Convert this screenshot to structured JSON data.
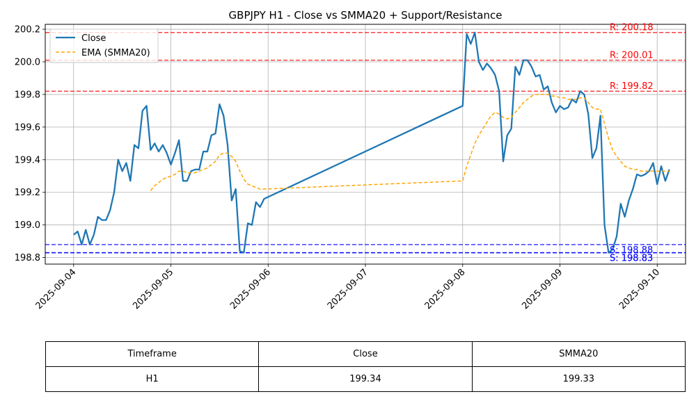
{
  "chart_data": {
    "type": "line",
    "title": "GBPJPY H1 - Close vs SMMA20 + Support/Resistance",
    "xlabel": "",
    "ylabel": "",
    "x_ticks": [
      "2025-09-04",
      "2025-09-05",
      "2025-09-06",
      "2025-09-07",
      "2025-09-08",
      "2025-09-09",
      "2025-09-10"
    ],
    "y_ticks": [
      "198.8",
      "199.0",
      "199.2",
      "199.4",
      "199.6",
      "199.8",
      "200.0",
      "200.2"
    ],
    "xlim": [
      "2025-09-03 17:00",
      "2025-09-10 07:00"
    ],
    "ylim": [
      198.76,
      200.23
    ],
    "grid": true,
    "legend_position": "top-left",
    "series": [
      {
        "name": "Close",
        "color": "#1f77b4",
        "style": "solid",
        "points": [
          [
            "2025-09-04 00:00",
            198.94
          ],
          [
            "2025-09-04 01:00",
            198.96
          ],
          [
            "2025-09-04 02:00",
            198.88
          ],
          [
            "2025-09-04 03:00",
            198.97
          ],
          [
            "2025-09-04 04:00",
            198.88
          ],
          [
            "2025-09-04 05:00",
            198.94
          ],
          [
            "2025-09-04 06:00",
            199.05
          ],
          [
            "2025-09-04 07:00",
            199.03
          ],
          [
            "2025-09-04 08:00",
            199.03
          ],
          [
            "2025-09-04 09:00",
            199.09
          ],
          [
            "2025-09-04 10:00",
            199.2
          ],
          [
            "2025-09-04 11:00",
            199.4
          ],
          [
            "2025-09-04 12:00",
            199.33
          ],
          [
            "2025-09-04 13:00",
            199.38
          ],
          [
            "2025-09-04 14:00",
            199.27
          ],
          [
            "2025-09-04 15:00",
            199.49
          ],
          [
            "2025-09-04 16:00",
            199.47
          ],
          [
            "2025-09-04 17:00",
            199.7
          ],
          [
            "2025-09-04 18:00",
            199.73
          ],
          [
            "2025-09-04 19:00",
            199.46
          ],
          [
            "2025-09-04 20:00",
            199.5
          ],
          [
            "2025-09-04 21:00",
            199.45
          ],
          [
            "2025-09-04 22:00",
            199.49
          ],
          [
            "2025-09-04 23:00",
            199.44
          ],
          [
            "2025-09-05 00:00",
            199.37
          ],
          [
            "2025-09-05 01:00",
            199.44
          ],
          [
            "2025-09-05 02:00",
            199.52
          ],
          [
            "2025-09-05 03:00",
            199.27
          ],
          [
            "2025-09-05 04:00",
            199.27
          ],
          [
            "2025-09-05 05:00",
            199.33
          ],
          [
            "2025-09-05 06:00",
            199.34
          ],
          [
            "2025-09-05 07:00",
            199.34
          ],
          [
            "2025-09-05 08:00",
            199.45
          ],
          [
            "2025-09-05 09:00",
            199.45
          ],
          [
            "2025-09-05 10:00",
            199.55
          ],
          [
            "2025-09-05 11:00",
            199.56
          ],
          [
            "2025-09-05 12:00",
            199.74
          ],
          [
            "2025-09-05 13:00",
            199.67
          ],
          [
            "2025-09-05 14:00",
            199.49
          ],
          [
            "2025-09-05 15:00",
            199.15
          ],
          [
            "2025-09-05 16:00",
            199.22
          ],
          [
            "2025-09-05 17:00",
            198.84
          ],
          [
            "2025-09-05 18:00",
            198.83
          ],
          [
            "2025-09-05 19:00",
            199.01
          ],
          [
            "2025-09-05 20:00",
            199.0
          ],
          [
            "2025-09-05 21:00",
            199.14
          ],
          [
            "2025-09-05 22:00",
            199.11
          ],
          [
            "2025-09-05 23:00",
            199.16
          ],
          [
            "2025-09-08 00:00",
            199.73
          ],
          [
            "2025-09-08 01:00",
            200.17
          ],
          [
            "2025-09-08 02:00",
            200.11
          ],
          [
            "2025-09-08 03:00",
            200.18
          ],
          [
            "2025-09-08 04:00",
            200.0
          ],
          [
            "2025-09-08 05:00",
            199.95
          ],
          [
            "2025-09-08 06:00",
            199.99
          ],
          [
            "2025-09-08 07:00",
            199.96
          ],
          [
            "2025-09-08 08:00",
            199.92
          ],
          [
            "2025-09-08 09:00",
            199.82
          ],
          [
            "2025-09-08 10:00",
            199.39
          ],
          [
            "2025-09-08 11:00",
            199.55
          ],
          [
            "2025-09-08 12:00",
            199.59
          ],
          [
            "2025-09-08 13:00",
            199.97
          ],
          [
            "2025-09-08 14:00",
            199.92
          ],
          [
            "2025-09-08 15:00",
            200.01
          ],
          [
            "2025-09-08 16:00",
            200.01
          ],
          [
            "2025-09-08 17:00",
            199.97
          ],
          [
            "2025-09-08 18:00",
            199.91
          ],
          [
            "2025-09-08 19:00",
            199.92
          ],
          [
            "2025-09-08 20:00",
            199.83
          ],
          [
            "2025-09-08 21:00",
            199.85
          ],
          [
            "2025-09-08 22:00",
            199.75
          ],
          [
            "2025-09-08 23:00",
            199.69
          ],
          [
            "2025-09-09 00:00",
            199.73
          ],
          [
            "2025-09-09 01:00",
            199.71
          ],
          [
            "2025-09-09 02:00",
            199.72
          ],
          [
            "2025-09-09 03:00",
            199.77
          ],
          [
            "2025-09-09 04:00",
            199.75
          ],
          [
            "2025-09-09 05:00",
            199.82
          ],
          [
            "2025-09-09 06:00",
            199.8
          ],
          [
            "2025-09-09 07:00",
            199.68
          ],
          [
            "2025-09-09 08:00",
            199.41
          ],
          [
            "2025-09-09 09:00",
            199.47
          ],
          [
            "2025-09-09 10:00",
            199.67
          ],
          [
            "2025-09-09 11:00",
            199.0
          ],
          [
            "2025-09-09 12:00",
            198.83
          ],
          [
            "2025-09-09 13:00",
            198.85
          ],
          [
            "2025-09-09 14:00",
            198.93
          ],
          [
            "2025-09-09 15:00",
            199.13
          ],
          [
            "2025-09-09 16:00",
            199.05
          ],
          [
            "2025-09-09 17:00",
            199.15
          ],
          [
            "2025-09-09 18:00",
            199.22
          ],
          [
            "2025-09-09 19:00",
            199.31
          ],
          [
            "2025-09-09 20:00",
            199.3
          ],
          [
            "2025-09-09 21:00",
            199.31
          ],
          [
            "2025-09-09 22:00",
            199.33
          ],
          [
            "2025-09-09 23:00",
            199.38
          ],
          [
            "2025-09-10 00:00",
            199.25
          ],
          [
            "2025-09-10 01:00",
            199.36
          ],
          [
            "2025-09-10 02:00",
            199.27
          ],
          [
            "2025-09-10 03:00",
            199.34
          ]
        ]
      },
      {
        "name": "EMA (SMMA20)",
        "color": "#ffa500",
        "style": "dashed",
        "points": [
          [
            "2025-09-04 19:00",
            199.21
          ],
          [
            "2025-09-04 20:00",
            199.24
          ],
          [
            "2025-09-04 21:00",
            199.26
          ],
          [
            "2025-09-04 22:00",
            199.28
          ],
          [
            "2025-09-04 23:00",
            199.29
          ],
          [
            "2025-09-05 00:00",
            199.3
          ],
          [
            "2025-09-05 01:00",
            199.31
          ],
          [
            "2025-09-05 02:00",
            199.33
          ],
          [
            "2025-09-05 03:00",
            199.33
          ],
          [
            "2025-09-05 04:00",
            199.32
          ],
          [
            "2025-09-05 05:00",
            199.32
          ],
          [
            "2025-09-05 06:00",
            199.32
          ],
          [
            "2025-09-05 07:00",
            199.33
          ],
          [
            "2025-09-05 08:00",
            199.34
          ],
          [
            "2025-09-05 09:00",
            199.35
          ],
          [
            "2025-09-05 10:00",
            199.37
          ],
          [
            "2025-09-05 11:00",
            199.39
          ],
          [
            "2025-09-05 12:00",
            199.43
          ],
          [
            "2025-09-05 13:00",
            199.44
          ],
          [
            "2025-09-05 14:00",
            199.44
          ],
          [
            "2025-09-05 15:00",
            199.42
          ],
          [
            "2025-09-05 16:00",
            199.39
          ],
          [
            "2025-09-05 17:00",
            199.33
          ],
          [
            "2025-09-05 18:00",
            199.28
          ],
          [
            "2025-09-05 19:00",
            199.25
          ],
          [
            "2025-09-05 20:00",
            199.24
          ],
          [
            "2025-09-05 21:00",
            199.23
          ],
          [
            "2025-09-05 22:00",
            199.22
          ],
          [
            "2025-09-05 23:00",
            199.22
          ],
          [
            "2025-09-08 00:00",
            199.27
          ],
          [
            "2025-09-08 01:00",
            199.36
          ],
          [
            "2025-09-08 02:00",
            199.43
          ],
          [
            "2025-09-08 03:00",
            199.5
          ],
          [
            "2025-09-08 04:00",
            199.55
          ],
          [
            "2025-09-08 05:00",
            199.59
          ],
          [
            "2025-09-08 06:00",
            199.63
          ],
          [
            "2025-09-08 07:00",
            199.67
          ],
          [
            "2025-09-08 08:00",
            199.69
          ],
          [
            "2025-09-08 09:00",
            199.68
          ],
          [
            "2025-09-08 10:00",
            199.66
          ],
          [
            "2025-09-08 11:00",
            199.65
          ],
          [
            "2025-09-08 12:00",
            199.66
          ],
          [
            "2025-09-08 13:00",
            199.69
          ],
          [
            "2025-09-08 14:00",
            199.72
          ],
          [
            "2025-09-08 15:00",
            199.75
          ],
          [
            "2025-09-08 16:00",
            199.77
          ],
          [
            "2025-09-08 17:00",
            199.79
          ],
          [
            "2025-09-08 18:00",
            199.8
          ],
          [
            "2025-09-08 19:00",
            199.8
          ],
          [
            "2025-09-08 20:00",
            199.8
          ],
          [
            "2025-09-08 21:00",
            199.8
          ],
          [
            "2025-09-08 22:00",
            199.79
          ],
          [
            "2025-09-08 23:00",
            199.79
          ],
          [
            "2025-09-09 00:00",
            199.78
          ],
          [
            "2025-09-09 01:00",
            199.78
          ],
          [
            "2025-09-09 02:00",
            199.77
          ],
          [
            "2025-09-09 03:00",
            199.77
          ],
          [
            "2025-09-09 04:00",
            199.77
          ],
          [
            "2025-09-09 05:00",
            199.78
          ],
          [
            "2025-09-09 06:00",
            199.78
          ],
          [
            "2025-09-09 07:00",
            199.75
          ],
          [
            "2025-09-09 08:00",
            199.72
          ],
          [
            "2025-09-09 09:00",
            199.71
          ],
          [
            "2025-09-09 10:00",
            199.71
          ],
          [
            "2025-09-09 11:00",
            199.62
          ],
          [
            "2025-09-09 12:00",
            199.53
          ],
          [
            "2025-09-09 13:00",
            199.46
          ],
          [
            "2025-09-09 14:00",
            199.42
          ],
          [
            "2025-09-09 15:00",
            199.39
          ],
          [
            "2025-09-09 16:00",
            199.36
          ],
          [
            "2025-09-09 17:00",
            199.35
          ],
          [
            "2025-09-09 18:00",
            199.34
          ],
          [
            "2025-09-09 19:00",
            199.34
          ],
          [
            "2025-09-09 20:00",
            199.33
          ],
          [
            "2025-09-09 21:00",
            199.33
          ],
          [
            "2025-09-09 22:00",
            199.33
          ],
          [
            "2025-09-09 23:00",
            199.33
          ],
          [
            "2025-09-10 00:00",
            199.33
          ],
          [
            "2025-09-10 01:00",
            199.33
          ],
          [
            "2025-09-10 02:00",
            199.33
          ],
          [
            "2025-09-10 03:00",
            199.33
          ]
        ]
      }
    ],
    "levels": [
      {
        "label": "R: 200.18",
        "value": 200.18,
        "kind": "resistance",
        "color": "#ff0000"
      },
      {
        "label": "R: 200.01",
        "value": 200.01,
        "kind": "resistance",
        "color": "#ff0000"
      },
      {
        "label": "R: 199.82",
        "value": 199.82,
        "kind": "resistance",
        "color": "#ff0000"
      },
      {
        "label": "S: 198.88",
        "value": 198.88,
        "kind": "support",
        "color": "#0000ff"
      },
      {
        "label": "S: 198.83",
        "value": 198.83,
        "kind": "support",
        "color": "#0000ff"
      },
      {
        "label": "S: 198.83",
        "value": 198.83,
        "kind": "support",
        "color": "#0000ff"
      }
    ]
  },
  "table": {
    "headers": [
      "Timeframe",
      "Close",
      "SMMA20"
    ],
    "rows": [
      [
        "H1",
        "199.34",
        "199.33"
      ]
    ]
  }
}
